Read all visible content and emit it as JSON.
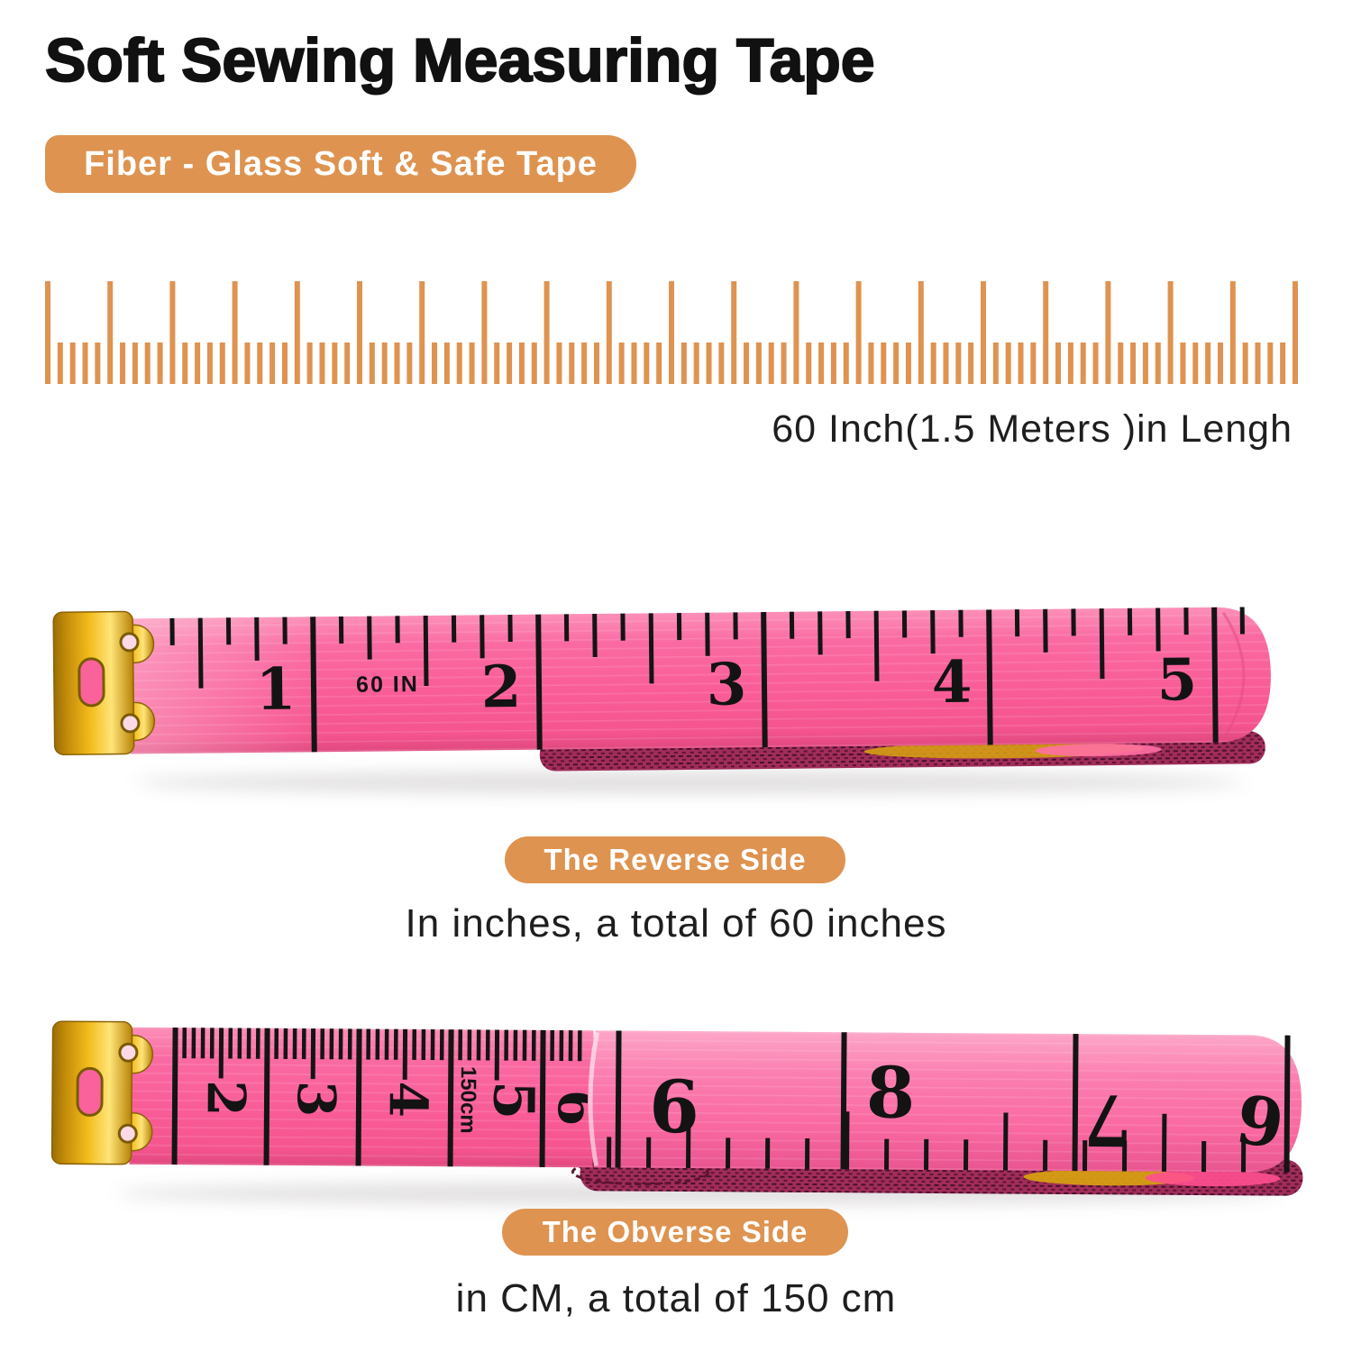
{
  "title": "Soft Sewing Measuring Tape",
  "header_badge": {
    "label": "Fiber - Glass Soft & Safe Tape"
  },
  "ruler": {
    "length_label": "60 Inch(1.5 Meters )in Lengh",
    "tick_count": 101,
    "major_every": 5
  },
  "tape_inches": {
    "badge": "The Reverse Side",
    "caption": "In inches, a total of 60 inches",
    "start_label": "60 IN",
    "numbers": [
      "1",
      "2",
      "3",
      "4",
      "5"
    ]
  },
  "tape_cm": {
    "badge": "The Obverse Side",
    "caption": "in CM, a total of 150 cm",
    "cm_numbers": [
      "2",
      "3",
      "4",
      "5",
      "6"
    ],
    "cm_total_label": "150cm",
    "fold_numbers": [
      "6",
      "8",
      "7",
      "9"
    ]
  },
  "colors": {
    "accent_orange": "#DE9350",
    "tape_pink": "#F9629B",
    "metal_gold": "#E7B117",
    "coil_maroon": "#A12D5B",
    "text": "#1A1A1A"
  }
}
